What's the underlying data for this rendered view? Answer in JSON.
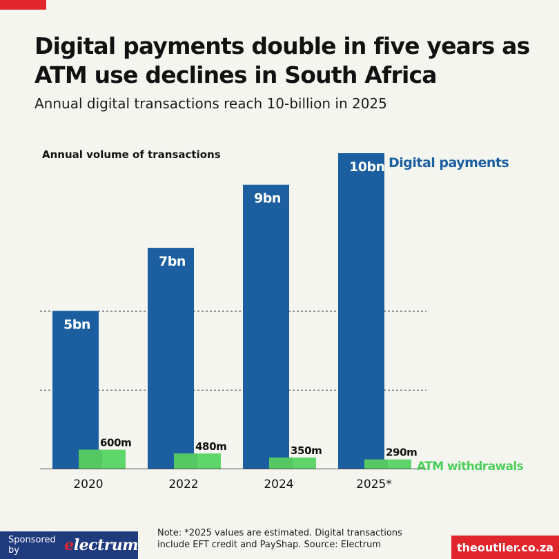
{
  "header": {
    "title": "Digital payments double in five years as ATM use declines in South Africa",
    "subtitle": "Annual digital transactions reach 10-billion in 2025"
  },
  "chart_data": {
    "type": "bar",
    "title": "Digital payments double in five years as ATM use declines in South Africa",
    "subtitle": "Annual digital transactions reach 10-billion in 2025",
    "axis_label": "Annual volume of transactions",
    "categories": [
      "2020",
      "2022",
      "2024",
      "2025*"
    ],
    "unit": "transactions",
    "series": [
      {
        "name": "Digital payments",
        "values": [
          5000000000,
          7000000000,
          9000000000,
          10000000000
        ],
        "labels": [
          "5bn",
          "7bn",
          "9bn",
          "10bn"
        ],
        "color": "#1b5fa0"
      },
      {
        "name": "ATM withdrawals",
        "values": [
          600000000,
          480000000,
          350000000,
          290000000
        ],
        "labels": [
          "600m",
          "480m",
          "350m",
          "290m"
        ],
        "color": "#5fd66a"
      }
    ],
    "ylim": [
      0,
      10000000000
    ],
    "gridlines": [
      2500000000,
      5000000000
    ],
    "grid": true,
    "legend": "direct labels at right"
  },
  "colors": {
    "digital": "#1b5fa0",
    "digital_label": "#1b5fa0",
    "atm": "#5fd66a",
    "atm_shade": "#55c661",
    "atm_label": "#4ccf5a",
    "accent_red": "#e0262c",
    "sponsor_bg": "#1f3b7e",
    "background": "#f5f5f0"
  },
  "footer": {
    "sponsor_label": "Sponsored by",
    "sponsor_name": "electrum",
    "note": "Note: *2025 values are estimated. Digital transactions include EFT credit and PayShap. Source: Electrum",
    "brand": "theoutlier.co.za"
  }
}
